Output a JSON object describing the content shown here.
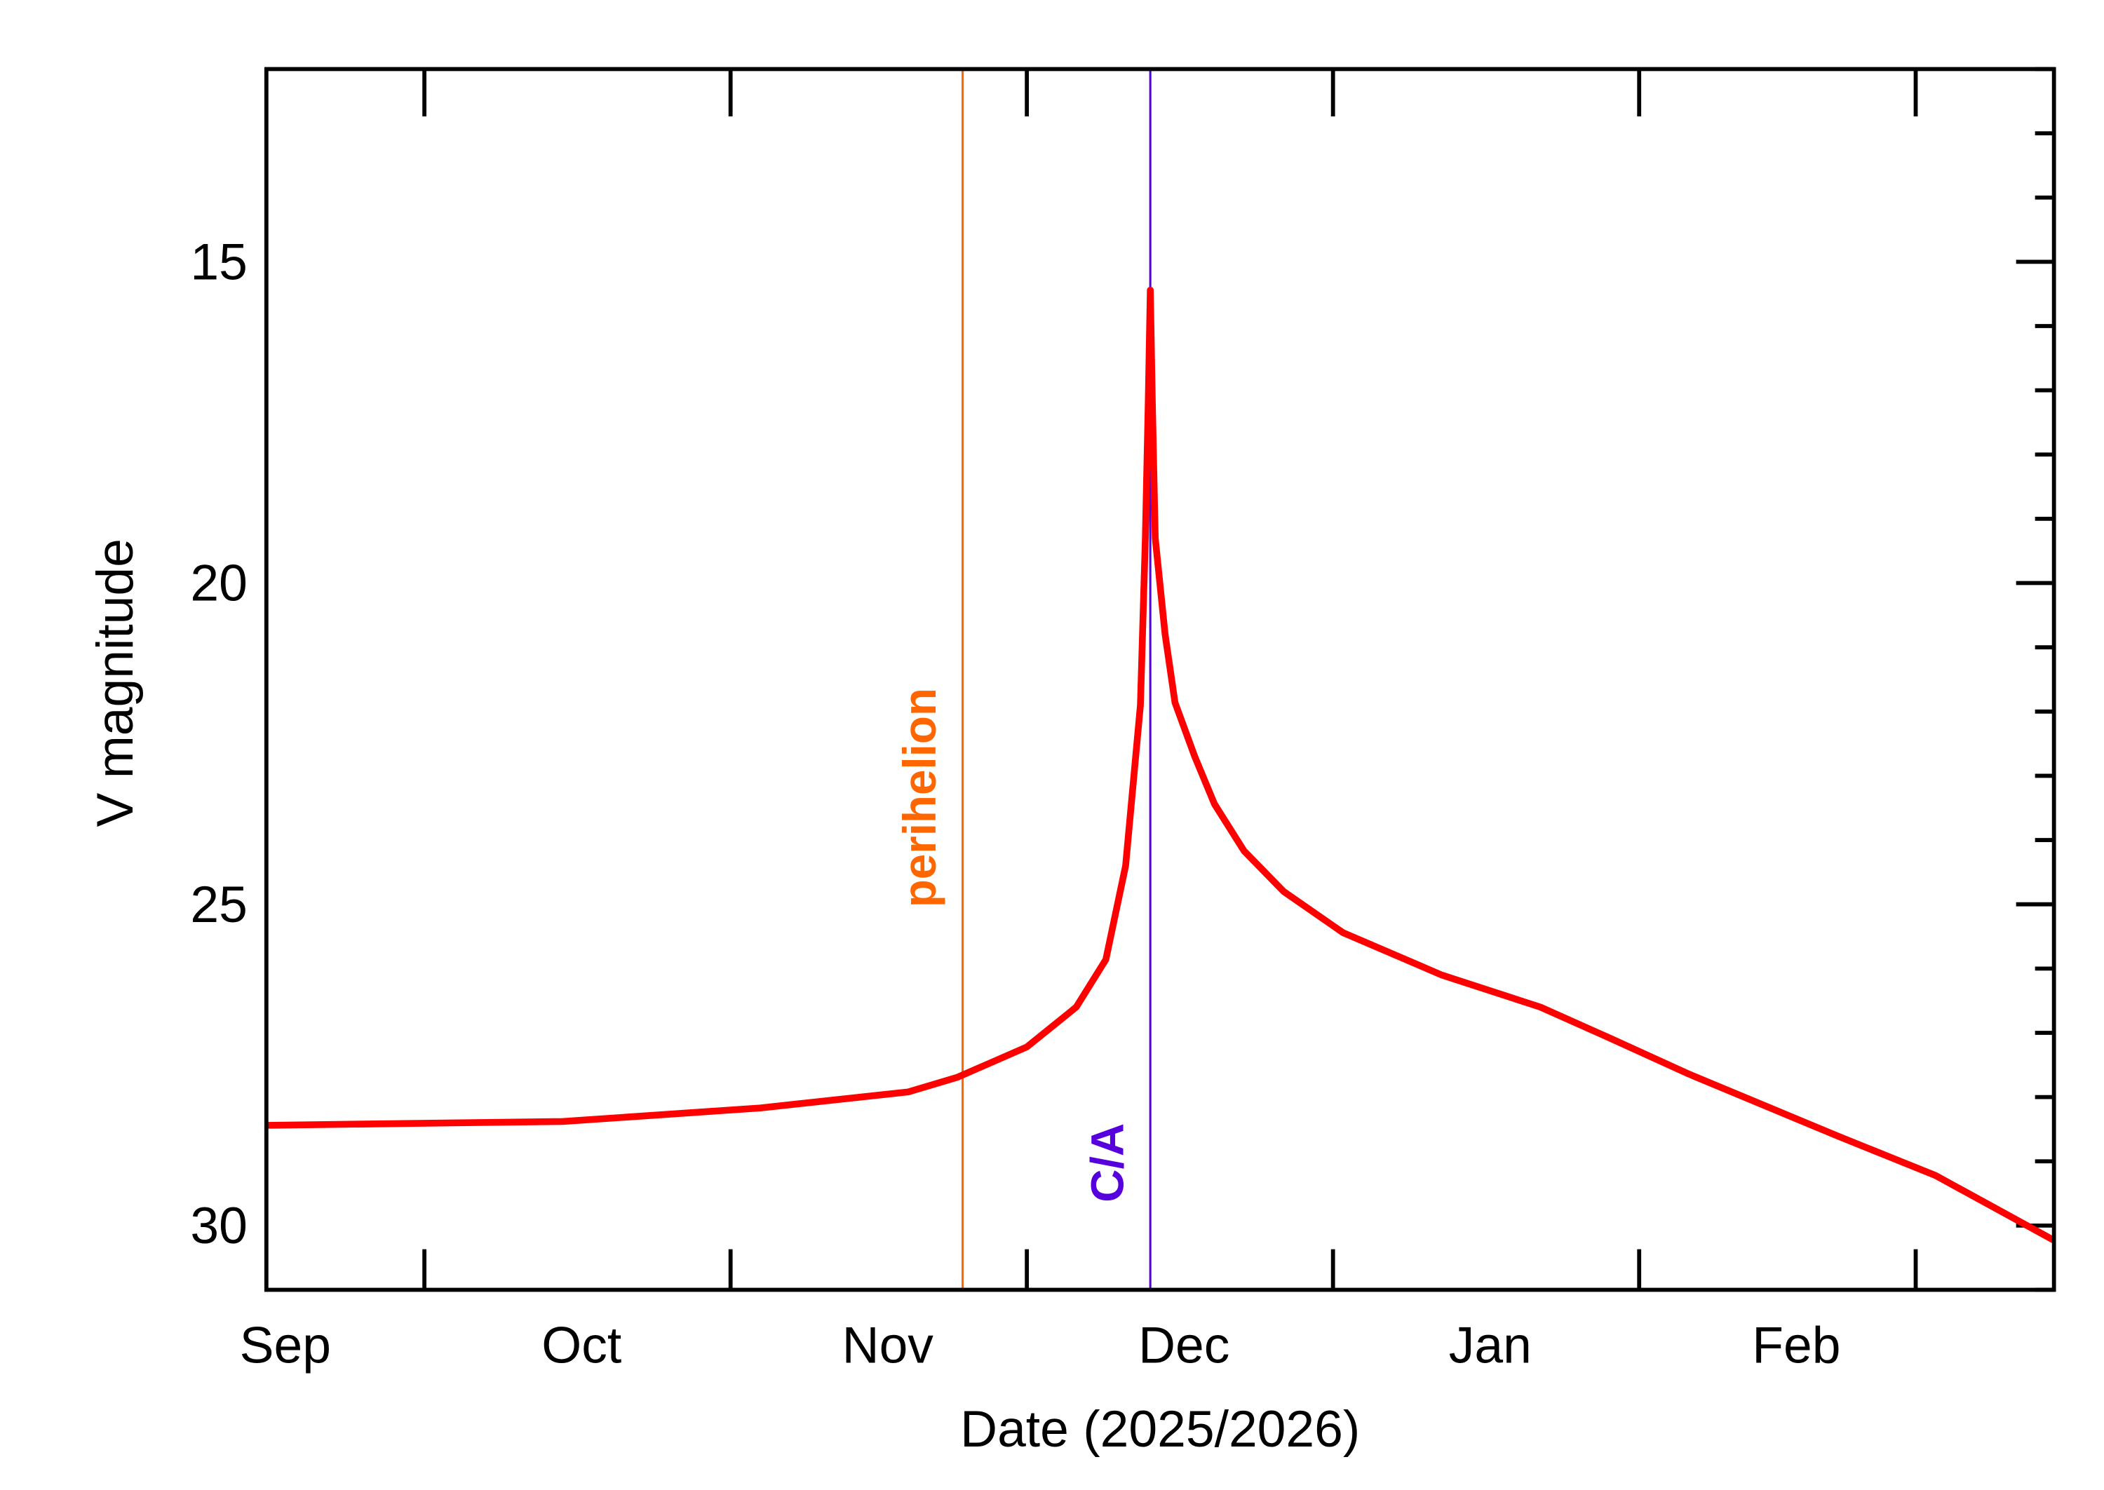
{
  "chart_data": {
    "type": "line",
    "title": "",
    "xlabel": "Date (2025/2026)",
    "ylabel": "V magnitude",
    "xlim": [
      "2025-09-01",
      "2026-03-01"
    ],
    "ylim": [
      12,
      31
    ],
    "y_inverted": true,
    "grid": false,
    "x_tick_labels": [
      {
        "label": "Sep",
        "date": "2025-09-01"
      },
      {
        "label": "Oct",
        "date": "2025-10-01"
      },
      {
        "label": "Nov",
        "date": "2025-11-01"
      },
      {
        "label": "Dec",
        "date": "2025-12-01"
      },
      {
        "label": "Jan",
        "date": "2026-01-01"
      },
      {
        "label": "Feb",
        "date": "2026-02-01"
      }
    ],
    "x_tick_marks": [
      "2025-09-17",
      "2025-10-18",
      "2025-11-17",
      "2025-12-18",
      "2026-01-18",
      "2026-02-15"
    ],
    "y_ticks": [
      15,
      20,
      25,
      30
    ],
    "y_minor_step": 1,
    "series": [
      {
        "color": "#ff0000",
        "points": [
          [
            "2025-09-01",
            28.44
          ],
          [
            "2025-10-01",
            28.38
          ],
          [
            "2025-10-21",
            28.17
          ],
          [
            "2025-11-05",
            27.92
          ],
          [
            "2025-11-10",
            27.69
          ],
          [
            "2025-11-17",
            27.22
          ],
          [
            "2025-11-22",
            26.6
          ],
          [
            "2025-11-25",
            25.86
          ],
          [
            "2025-11-27",
            24.4
          ],
          [
            "2025-11-28T12:00",
            21.9
          ],
          [
            "2025-11-29T00:00",
            19.3
          ],
          [
            "2025-11-29T07:00",
            17.2
          ],
          [
            "2025-11-29T12:00",
            15.44
          ],
          [
            "2025-11-29T17:00",
            17.2
          ],
          [
            "2025-11-30",
            19.3
          ],
          [
            "2025-12-01",
            20.8
          ],
          [
            "2025-12-02",
            21.86
          ],
          [
            "2025-12-04",
            22.7
          ],
          [
            "2025-12-06",
            23.44
          ],
          [
            "2025-12-09",
            24.17
          ],
          [
            "2025-12-13",
            24.8
          ],
          [
            "2025-12-19",
            25.44
          ],
          [
            "2025-12-29",
            26.1
          ],
          [
            "2026-01-08",
            26.6
          ],
          [
            "2026-01-15",
            27.08
          ],
          [
            "2026-01-23",
            27.64
          ],
          [
            "2026-02-07",
            28.6
          ],
          [
            "2026-02-17",
            29.22
          ],
          [
            "2026-03-01",
            30.23
          ]
        ]
      }
    ],
    "annotations": [
      {
        "label": "perihelion",
        "date": "2025-11-10T12:00",
        "color": "#ff6600"
      },
      {
        "label": "C/A",
        "date": "2025-11-29T12:00",
        "color": "#5500dd"
      }
    ]
  }
}
